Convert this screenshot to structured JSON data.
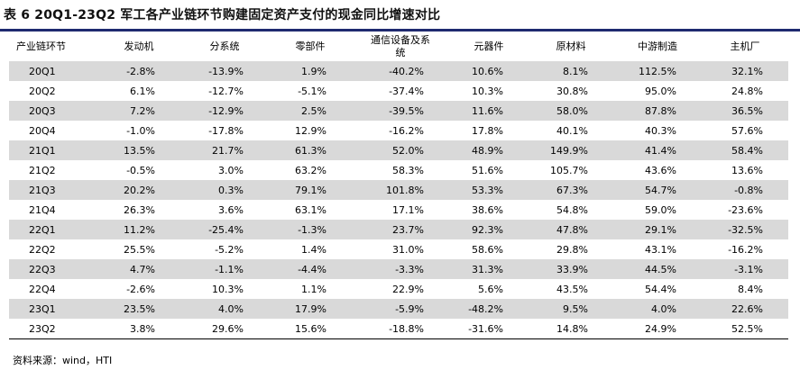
{
  "title": "表 6  20Q1-23Q2 军工各产业链环节购建固定资产支付的现金同比增速对比",
  "table": {
    "headers": [
      "产业链环节",
      "发动机",
      "分系统",
      "零部件",
      "通信设备及系统",
      "元器件",
      "原材料",
      "中游制造",
      "主机厂"
    ],
    "rows": [
      [
        "20Q1",
        "-2.8%",
        "-13.9%",
        "1.9%",
        "-40.2%",
        "10.6%",
        "8.1%",
        "112.5%",
        "32.1%"
      ],
      [
        "20Q2",
        "6.1%",
        "-12.7%",
        "-5.1%",
        "-37.4%",
        "10.3%",
        "30.8%",
        "95.0%",
        "24.8%"
      ],
      [
        "20Q3",
        "7.2%",
        "-12.9%",
        "2.5%",
        "-39.5%",
        "11.6%",
        "58.0%",
        "87.8%",
        "36.5%"
      ],
      [
        "20Q4",
        "-1.0%",
        "-17.8%",
        "12.9%",
        "-16.2%",
        "17.8%",
        "40.1%",
        "40.3%",
        "57.6%"
      ],
      [
        "21Q1",
        "13.5%",
        "21.7%",
        "61.3%",
        "52.0%",
        "48.9%",
        "149.9%",
        "41.4%",
        "58.4%"
      ],
      [
        "21Q2",
        "-0.5%",
        "3.0%",
        "63.2%",
        "58.3%",
        "51.6%",
        "105.7%",
        "43.6%",
        "13.6%"
      ],
      [
        "21Q3",
        "20.2%",
        "0.3%",
        "79.1%",
        "101.8%",
        "53.3%",
        "67.3%",
        "54.7%",
        "-0.8%"
      ],
      [
        "21Q4",
        "26.3%",
        "3.6%",
        "63.1%",
        "17.1%",
        "38.6%",
        "54.8%",
        "59.0%",
        "-23.6%"
      ],
      [
        "22Q1",
        "11.2%",
        "-25.4%",
        "-1.3%",
        "23.7%",
        "92.3%",
        "47.8%",
        "29.1%",
        "-32.5%"
      ],
      [
        "22Q2",
        "25.5%",
        "-5.2%",
        "1.4%",
        "31.0%",
        "58.6%",
        "29.8%",
        "43.1%",
        "-16.2%"
      ],
      [
        "22Q3",
        "4.7%",
        "-1.1%",
        "-4.4%",
        "-3.3%",
        "31.3%",
        "33.9%",
        "44.5%",
        "-3.1%"
      ],
      [
        "22Q4",
        "-2.6%",
        "10.3%",
        "1.1%",
        "22.9%",
        "5.6%",
        "43.5%",
        "54.4%",
        "8.4%"
      ],
      [
        "23Q1",
        "23.5%",
        "4.0%",
        "17.9%",
        "-5.9%",
        "-48.2%",
        "9.5%",
        "4.0%",
        "22.6%"
      ],
      [
        "23Q2",
        "3.8%",
        "29.6%",
        "15.6%",
        "-18.8%",
        "-31.6%",
        "14.8%",
        "24.9%",
        "52.5%"
      ]
    ]
  },
  "source": "资料来源：wind，HTI",
  "colors": {
    "title_rule": "#1f2a70",
    "row_shade": "#d9d9d9"
  }
}
